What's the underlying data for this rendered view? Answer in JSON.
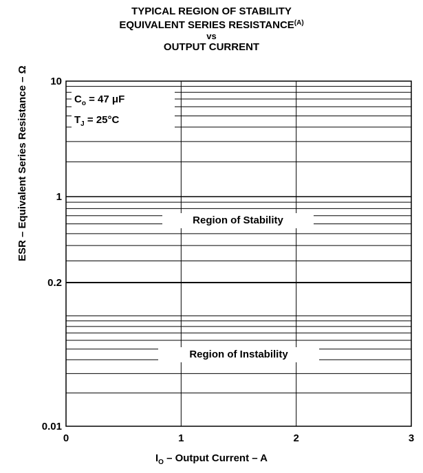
{
  "title": {
    "line1": "TYPICAL REGION OF STABILITY",
    "line2": "EQUIVALENT SERIES RESISTANCE",
    "line2_sup": "(A)",
    "line3": "vs",
    "line4": "OUTPUT CURRENT"
  },
  "conditions": {
    "co_sym": "C",
    "co_sub": "o",
    "co_val": " = 47 μF",
    "tj_sym": "T",
    "tj_sub": "J",
    "tj_val": " = 25°C"
  },
  "colors": {
    "instability_fill": "#e3e3e3",
    "grid": "#000000"
  },
  "chart_data": {
    "type": "area",
    "xlabel_sym": "I",
    "xlabel_sub": "O",
    "xlabel_rest": " – Output Current – A",
    "ylabel": "ESR – Equivalent Series Resistance – Ω",
    "xlim": [
      0,
      3
    ],
    "ylim": [
      0.01,
      10
    ],
    "y_scale": "log",
    "x_ticks": [
      "0",
      "1",
      "2",
      "3"
    ],
    "y_ticks": [
      "10",
      "1",
      "0.2",
      "0.01"
    ],
    "grid": true,
    "regions": [
      {
        "name": "Region of Stability",
        "from": 0.2,
        "to": 10
      },
      {
        "name": "Region of Instability",
        "from": 0.01,
        "to": 0.2
      }
    ],
    "boundary": {
      "x": [
        0,
        3
      ],
      "y": [
        0.2,
        0.2
      ]
    }
  }
}
